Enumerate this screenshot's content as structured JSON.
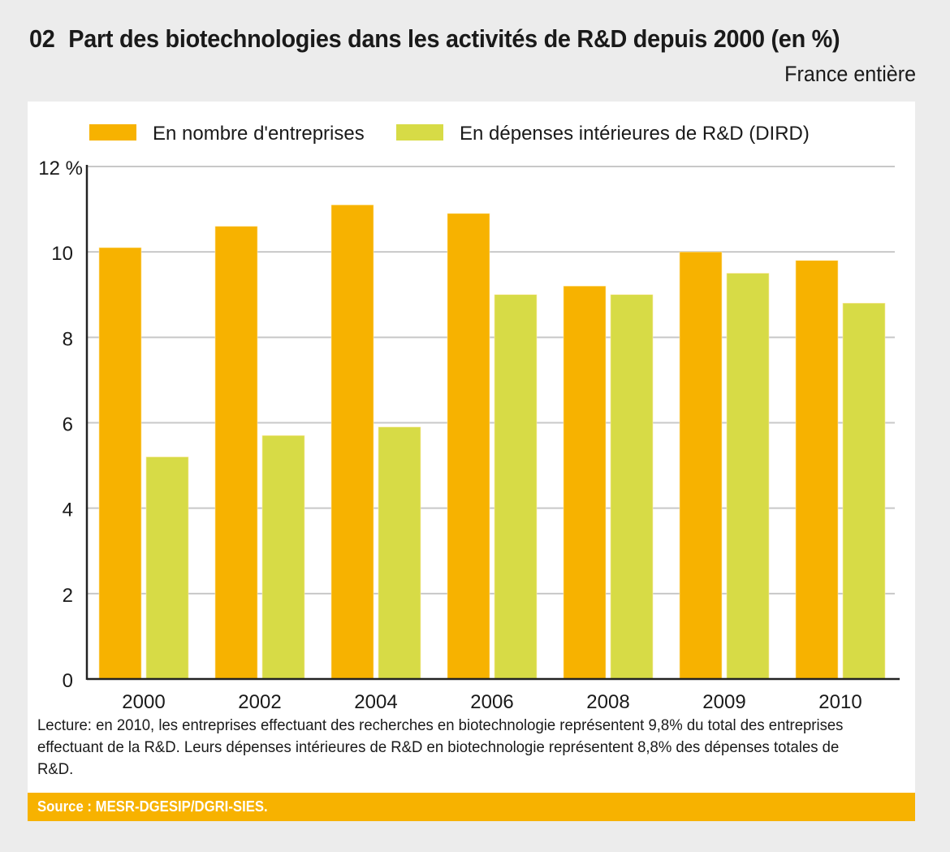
{
  "header": {
    "number": "02",
    "title": "Part des biotechnologies dans les activités de R&D depuis 2000 (en %)",
    "subtitle": "France entière"
  },
  "note": "Lecture: en 2010, les entreprises effectuant des recherches en biotechnologie représentent 9,8% du total des entreprises effectuant de la R&D. Leurs dépenses intérieures de R&D en biotechnologie représentent 8,8% des dépenses totales de R&D.",
  "source": "Source : MESR-DGESIP/DGRI-SIES.",
  "chart_data": {
    "type": "bar",
    "title": "Part des biotechnologies dans les activités de R&D depuis 2000 (en %)",
    "subtitle": "France entière",
    "xlabel": "",
    "ylabel": "",
    "categories": [
      "2000",
      "2002",
      "2004",
      "2006",
      "2008",
      "2009",
      "2010"
    ],
    "series": [
      {
        "name": "En nombre d'entreprises",
        "color": "#f7b200",
        "values": [
          10.1,
          10.6,
          11.1,
          10.9,
          9.2,
          10.0,
          9.8
        ]
      },
      {
        "name": "En dépenses intérieures de R&D (DIRD)",
        "color": "#d7db46",
        "values": [
          5.2,
          5.7,
          5.9,
          9.0,
          9.0,
          9.5,
          8.8
        ]
      }
    ],
    "ylim": [
      0,
      12
    ],
    "yticks": [
      0,
      2,
      4,
      6,
      8,
      10,
      12
    ],
    "ytick_labels": [
      "0",
      "2",
      "4",
      "6",
      "8",
      "10",
      "12 %"
    ],
    "grid": true,
    "legend": "top"
  }
}
